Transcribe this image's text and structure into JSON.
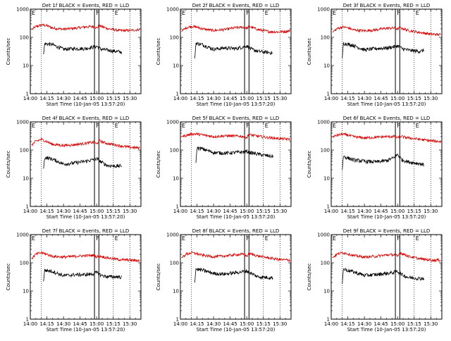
{
  "chart_data": {
    "type": "line",
    "layout": "3x3 grid of panels",
    "y_scale": "log",
    "ylim": [
      1,
      1000
    ],
    "y_tick_labels": [
      "1",
      "10",
      "100",
      "1000"
    ],
    "xlim_minutes": [
      0,
      100
    ],
    "x_tick_labels": [
      "14:00",
      "14:15",
      "14:30",
      "14:45",
      "15:00",
      "15:15",
      "15:30"
    ],
    "x_tick_minutes": [
      0,
      15,
      30,
      45,
      60,
      75,
      90
    ],
    "ylabel": "Counts/sec",
    "xlabel": "Start Time (10-Jan-05 13:57:20)",
    "series_colors": {
      "events": "#000000",
      "lld": "#dd0000"
    },
    "markers": {
      "E_labels": [
        {
          "text": "E",
          "minute": 0
        },
        {
          "text": "E",
          "minute": 75
        }
      ],
      "F_label": {
        "text": "F",
        "minute": 60
      },
      "dotted_lines_minutes": [
        10,
        75,
        90
      ],
      "solid_box_minutes": [
        58,
        62
      ]
    },
    "panels": [
      {
        "title": "Det 1f BLACK = Events, RED = LLD",
        "red": [
          [
            1,
            185
          ],
          [
            5,
            240
          ],
          [
            10,
            275
          ],
          [
            15,
            260
          ],
          [
            20,
            215
          ],
          [
            30,
            195
          ],
          [
            40,
            210
          ],
          [
            50,
            235
          ],
          [
            58,
            245
          ],
          [
            60,
            210
          ],
          [
            62,
            260
          ],
          [
            70,
            205
          ],
          [
            80,
            175
          ],
          [
            90,
            175
          ],
          [
            99,
            190
          ]
        ],
        "black": [
          [
            12,
            25
          ],
          [
            13,
            60
          ],
          [
            20,
            55
          ],
          [
            30,
            38
          ],
          [
            40,
            40
          ],
          [
            50,
            40
          ],
          [
            56,
            45
          ],
          [
            60,
            48
          ],
          [
            64,
            38
          ],
          [
            70,
            35
          ],
          [
            80,
            31
          ],
          [
            83,
            30
          ]
        ]
      },
      {
        "title": "Det 2f BLACK = Events, RED = LLD",
        "red": [
          [
            1,
            160
          ],
          [
            5,
            220
          ],
          [
            10,
            245
          ],
          [
            15,
            230
          ],
          [
            20,
            200
          ],
          [
            30,
            175
          ],
          [
            40,
            190
          ],
          [
            50,
            220
          ],
          [
            58,
            230
          ],
          [
            60,
            205
          ],
          [
            62,
            245
          ],
          [
            70,
            190
          ],
          [
            80,
            160
          ],
          [
            90,
            155
          ],
          [
            99,
            170
          ]
        ],
        "black": [
          [
            13,
            18
          ],
          [
            14,
            62
          ],
          [
            20,
            55
          ],
          [
            30,
            38
          ],
          [
            40,
            42
          ],
          [
            50,
            40
          ],
          [
            56,
            45
          ],
          [
            60,
            50
          ],
          [
            64,
            38
          ],
          [
            70,
            32
          ],
          [
            80,
            29
          ],
          [
            83,
            28
          ]
        ]
      },
      {
        "title": "Det 3f BLACK = Events, RED = LLD",
        "red": [
          [
            1,
            150
          ],
          [
            5,
            200
          ],
          [
            10,
            235
          ],
          [
            15,
            220
          ],
          [
            20,
            185
          ],
          [
            30,
            170
          ],
          [
            40,
            185
          ],
          [
            50,
            210
          ],
          [
            58,
            215
          ],
          [
            60,
            195
          ],
          [
            62,
            220
          ],
          [
            70,
            175
          ],
          [
            80,
            150
          ],
          [
            90,
            130
          ],
          [
            99,
            125
          ]
        ],
        "black": [
          [
            10,
            18
          ],
          [
            11,
            62
          ],
          [
            20,
            52
          ],
          [
            30,
            36
          ],
          [
            40,
            40
          ],
          [
            50,
            42
          ],
          [
            56,
            46
          ],
          [
            60,
            50
          ],
          [
            64,
            40
          ],
          [
            70,
            35
          ],
          [
            80,
            32
          ],
          [
            84,
            35
          ]
        ]
      },
      {
        "title": "Det 4f BLACK = Events, RED = LLD",
        "red": [
          [
            1,
            150
          ],
          [
            5,
            205
          ],
          [
            10,
            240
          ],
          [
            15,
            200
          ],
          [
            20,
            160
          ],
          [
            30,
            145
          ],
          [
            40,
            155
          ],
          [
            50,
            175
          ],
          [
            58,
            190
          ],
          [
            60,
            160
          ],
          [
            62,
            215
          ],
          [
            70,
            170
          ],
          [
            80,
            145
          ],
          [
            90,
            125
          ],
          [
            99,
            120
          ]
        ],
        "black": [
          [
            12,
            22
          ],
          [
            13,
            55
          ],
          [
            20,
            48
          ],
          [
            30,
            32
          ],
          [
            40,
            35
          ],
          [
            50,
            40
          ],
          [
            56,
            45
          ],
          [
            60,
            50
          ],
          [
            64,
            38
          ],
          [
            70,
            28
          ],
          [
            80,
            27
          ],
          [
            83,
            28
          ]
        ]
      },
      {
        "title": "Det 5f BLACK = Events, RED = LLD",
        "red": [
          [
            1,
            300
          ],
          [
            5,
            330
          ],
          [
            10,
            370
          ],
          [
            15,
            375
          ],
          [
            20,
            345
          ],
          [
            30,
            300
          ],
          [
            40,
            320
          ],
          [
            50,
            315
          ],
          [
            58,
            300
          ],
          [
            60,
            280
          ],
          [
            62,
            355
          ],
          [
            70,
            310
          ],
          [
            80,
            275
          ],
          [
            90,
            255
          ],
          [
            99,
            240
          ]
        ],
        "black": [
          [
            14,
            35
          ],
          [
            15,
            120
          ],
          [
            20,
            110
          ],
          [
            30,
            82
          ],
          [
            40,
            78
          ],
          [
            50,
            82
          ],
          [
            56,
            85
          ],
          [
            60,
            90
          ],
          [
            64,
            80
          ],
          [
            70,
            72
          ],
          [
            80,
            62
          ],
          [
            84,
            60
          ]
        ]
      },
      {
        "title": "Det 6f BLACK = Events, RED = LLD",
        "red": [
          [
            1,
            290
          ],
          [
            5,
            330
          ],
          [
            10,
            370
          ],
          [
            15,
            340
          ],
          [
            20,
            300
          ],
          [
            30,
            270
          ],
          [
            40,
            285
          ],
          [
            50,
            300
          ],
          [
            58,
            305
          ],
          [
            60,
            265
          ],
          [
            62,
            310
          ],
          [
            70,
            270
          ],
          [
            80,
            240
          ],
          [
            90,
            215
          ],
          [
            99,
            200
          ]
        ],
        "black": [
          [
            10,
            20
          ],
          [
            11,
            60
          ],
          [
            20,
            45
          ],
          [
            30,
            40
          ],
          [
            40,
            38
          ],
          [
            50,
            42
          ],
          [
            56,
            52
          ],
          [
            60,
            70
          ],
          [
            64,
            45
          ],
          [
            70,
            38
          ],
          [
            80,
            33
          ],
          [
            84,
            30
          ]
        ]
      },
      {
        "title": "Det 7f BLACK = Events, RED = LLD",
        "red": [
          [
            1,
            140
          ],
          [
            5,
            200
          ],
          [
            10,
            230
          ],
          [
            15,
            200
          ],
          [
            20,
            170
          ],
          [
            30,
            160
          ],
          [
            40,
            170
          ],
          [
            50,
            180
          ],
          [
            58,
            185
          ],
          [
            60,
            160
          ],
          [
            62,
            175
          ],
          [
            70,
            150
          ],
          [
            80,
            130
          ],
          [
            90,
            125
          ],
          [
            99,
            120
          ]
        ],
        "black": [
          [
            12,
            22
          ],
          [
            13,
            55
          ],
          [
            20,
            50
          ],
          [
            30,
            35
          ],
          [
            40,
            38
          ],
          [
            50,
            38
          ],
          [
            56,
            40
          ],
          [
            60,
            45
          ],
          [
            64,
            36
          ],
          [
            70,
            32
          ],
          [
            80,
            32
          ],
          [
            83,
            30
          ]
        ]
      },
      {
        "title": "Det 8f BLACK = Events, RED = LLD",
        "red": [
          [
            1,
            150
          ],
          [
            5,
            200
          ],
          [
            10,
            230
          ],
          [
            15,
            210
          ],
          [
            20,
            185
          ],
          [
            30,
            165
          ],
          [
            40,
            175
          ],
          [
            50,
            195
          ],
          [
            58,
            200
          ],
          [
            60,
            170
          ],
          [
            62,
            215
          ],
          [
            70,
            175
          ],
          [
            80,
            150
          ],
          [
            90,
            130
          ],
          [
            99,
            125
          ]
        ],
        "black": [
          [
            13,
            20
          ],
          [
            14,
            60
          ],
          [
            20,
            55
          ],
          [
            30,
            42
          ],
          [
            40,
            40
          ],
          [
            50,
            45
          ],
          [
            56,
            48
          ],
          [
            60,
            52
          ],
          [
            64,
            42
          ],
          [
            70,
            32
          ],
          [
            80,
            30
          ],
          [
            84,
            30
          ]
        ]
      },
      {
        "title": "Det 9f BLACK = Events, RED = LLD",
        "red": [
          [
            1,
            150
          ],
          [
            5,
            200
          ],
          [
            10,
            230
          ],
          [
            15,
            210
          ],
          [
            20,
            180
          ],
          [
            30,
            160
          ],
          [
            40,
            170
          ],
          [
            50,
            190
          ],
          [
            58,
            195
          ],
          [
            60,
            165
          ],
          [
            62,
            230
          ],
          [
            70,
            170
          ],
          [
            80,
            140
          ],
          [
            90,
            125
          ],
          [
            99,
            125
          ]
        ],
        "black": [
          [
            10,
            18
          ],
          [
            11,
            60
          ],
          [
            20,
            48
          ],
          [
            30,
            36
          ],
          [
            40,
            38
          ],
          [
            50,
            42
          ],
          [
            56,
            45
          ],
          [
            60,
            50
          ],
          [
            64,
            38
          ],
          [
            70,
            30
          ],
          [
            80,
            28
          ],
          [
            84,
            28
          ]
        ]
      }
    ]
  }
}
